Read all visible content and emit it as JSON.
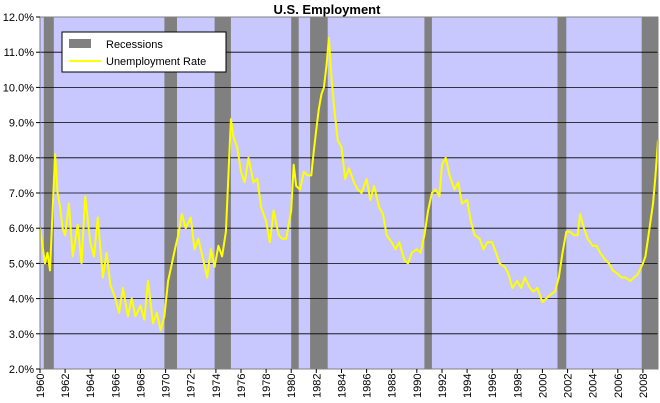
{
  "chart_data": {
    "type": "line",
    "title": "U.S. Employment",
    "xlabel": "",
    "ylabel": "",
    "xlim": [
      1960,
      2009.2
    ],
    "ylim": [
      2.0,
      12.0
    ],
    "yticks": [
      "2.0%",
      "3.0%",
      "4.0%",
      "5.0%",
      "6.0%",
      "7.0%",
      "8.0%",
      "9.0%",
      "10.0%",
      "11.0%",
      "12.0%"
    ],
    "ytick_values": [
      2,
      3,
      4,
      5,
      6,
      7,
      8,
      9,
      10,
      11,
      12
    ],
    "xticks": [
      "1960",
      "1962",
      "1964",
      "1966",
      "1968",
      "1970",
      "1972",
      "1974",
      "1976",
      "1978",
      "1980",
      "1982",
      "1984",
      "1986",
      "1988",
      "1990",
      "1992",
      "1994",
      "1996",
      "1998",
      "2000",
      "2002",
      "2004",
      "2006",
      "2008"
    ],
    "xtick_values": [
      1960,
      1962,
      1964,
      1966,
      1968,
      1970,
      1972,
      1974,
      1976,
      1978,
      1980,
      1982,
      1984,
      1986,
      1988,
      1990,
      1992,
      1994,
      1996,
      1998,
      2000,
      2002,
      2004,
      2006,
      2008
    ],
    "grid": true,
    "legend_position": "top-left",
    "legend": [
      "Recessions",
      "Unemployment Rate"
    ],
    "recessions": [
      {
        "start": 1960.3,
        "end": 1961.1
      },
      {
        "start": 1969.9,
        "end": 1970.9
      },
      {
        "start": 1973.9,
        "end": 1975.2
      },
      {
        "start": 1980.0,
        "end": 1980.6
      },
      {
        "start": 1981.5,
        "end": 1982.9
      },
      {
        "start": 1990.6,
        "end": 1991.2
      },
      {
        "start": 2001.2,
        "end": 2001.9
      },
      {
        "start": 2007.9,
        "end": 2009.2
      }
    ],
    "series": [
      {
        "name": "Unemployment Rate",
        "x": [
          1960.0,
          1960.2,
          1960.4,
          1960.6,
          1960.8,
          1961.0,
          1961.2,
          1961.4,
          1961.6,
          1961.8,
          1962.0,
          1962.3,
          1962.6,
          1963.0,
          1963.3,
          1963.6,
          1964.0,
          1964.3,
          1964.6,
          1965.0,
          1965.3,
          1965.6,
          1966.0,
          1966.3,
          1966.6,
          1967.0,
          1967.3,
          1967.6,
          1968.0,
          1968.3,
          1968.6,
          1969.0,
          1969.3,
          1969.6,
          1969.9,
          1970.2,
          1970.5,
          1970.8,
          1971.0,
          1971.3,
          1971.6,
          1972.0,
          1972.3,
          1972.6,
          1973.0,
          1973.3,
          1973.6,
          1973.9,
          1974.2,
          1974.5,
          1974.8,
          1975.0,
          1975.2,
          1975.4,
          1975.7,
          1976.0,
          1976.3,
          1976.6,
          1977.0,
          1977.3,
          1977.6,
          1978.0,
          1978.3,
          1978.6,
          1979.0,
          1979.3,
          1979.6,
          1980.0,
          1980.2,
          1980.4,
          1980.7,
          1981.0,
          1981.3,
          1981.6,
          1981.8,
          1982.0,
          1982.2,
          1982.4,
          1982.6,
          1982.8,
          1983.0,
          1983.2,
          1983.4,
          1983.7,
          1984.0,
          1984.3,
          1984.6,
          1985.0,
          1985.3,
          1985.6,
          1986.0,
          1986.3,
          1986.6,
          1987.0,
          1987.3,
          1987.6,
          1988.0,
          1988.3,
          1988.6,
          1989.0,
          1989.3,
          1989.6,
          1990.0,
          1990.3,
          1990.6,
          1990.9,
          1991.2,
          1991.5,
          1991.8,
          1992.0,
          1992.3,
          1992.6,
          1993.0,
          1993.3,
          1993.6,
          1994.0,
          1994.3,
          1994.6,
          1995.0,
          1995.3,
          1995.6,
          1996.0,
          1996.3,
          1996.6,
          1997.0,
          1997.3,
          1997.6,
          1998.0,
          1998.3,
          1998.6,
          1999.0,
          1999.3,
          1999.6,
          2000.0,
          2000.3,
          2000.6,
          2001.0,
          2001.3,
          2001.6,
          2001.9,
          2002.2,
          2002.5,
          2002.8,
          2003.0,
          2003.3,
          2003.6,
          2004.0,
          2004.3,
          2004.6,
          2005.0,
          2005.3,
          2005.6,
          2006.0,
          2006.3,
          2006.6,
          2007.0,
          2007.3,
          2007.6,
          2008.0,
          2008.2,
          2008.4,
          2008.6,
          2008.8,
          2009.0,
          2009.2
        ],
        "values": [
          6.0,
          5.5,
          5.0,
          5.3,
          4.8,
          6.5,
          8.1,
          7.0,
          6.6,
          6.0,
          5.8,
          6.7,
          5.2,
          6.1,
          5.0,
          6.9,
          5.6,
          5.2,
          6.3,
          4.6,
          5.3,
          4.4,
          4.0,
          3.6,
          4.3,
          3.5,
          4.0,
          3.5,
          3.8,
          3.4,
          4.5,
          3.3,
          3.6,
          3.1,
          3.5,
          4.5,
          5.0,
          5.5,
          5.8,
          6.4,
          6.0,
          6.3,
          5.4,
          5.7,
          5.1,
          4.6,
          5.4,
          4.9,
          5.5,
          5.2,
          5.9,
          7.5,
          9.1,
          8.6,
          8.3,
          7.6,
          7.3,
          8.0,
          7.3,
          7.4,
          6.6,
          6.2,
          5.6,
          6.5,
          5.8,
          5.7,
          5.7,
          6.5,
          7.8,
          7.2,
          7.1,
          7.6,
          7.5,
          7.5,
          8.2,
          8.8,
          9.4,
          9.8,
          10.0,
          10.6,
          11.4,
          10.3,
          9.5,
          8.5,
          8.3,
          7.4,
          7.7,
          7.3,
          7.1,
          7.0,
          7.4,
          6.8,
          7.2,
          6.6,
          6.4,
          5.8,
          5.6,
          5.4,
          5.6,
          5.1,
          5.0,
          5.3,
          5.4,
          5.3,
          5.8,
          6.5,
          7.0,
          7.1,
          6.9,
          7.8,
          8.0,
          7.5,
          7.1,
          7.3,
          6.7,
          6.8,
          6.2,
          5.8,
          5.7,
          5.4,
          5.6,
          5.6,
          5.3,
          5.0,
          4.9,
          4.7,
          4.3,
          4.5,
          4.3,
          4.6,
          4.3,
          4.2,
          4.3,
          3.9,
          4.0,
          4.1,
          4.2,
          4.6,
          5.3,
          5.9,
          5.9,
          5.8,
          5.8,
          6.4,
          6.0,
          5.7,
          5.5,
          5.5,
          5.3,
          5.1,
          5.0,
          4.8,
          4.7,
          4.6,
          4.6,
          4.5,
          4.6,
          4.7,
          5.0,
          5.2,
          5.7,
          6.2,
          6.7,
          7.5,
          8.5
        ]
      }
    ]
  }
}
